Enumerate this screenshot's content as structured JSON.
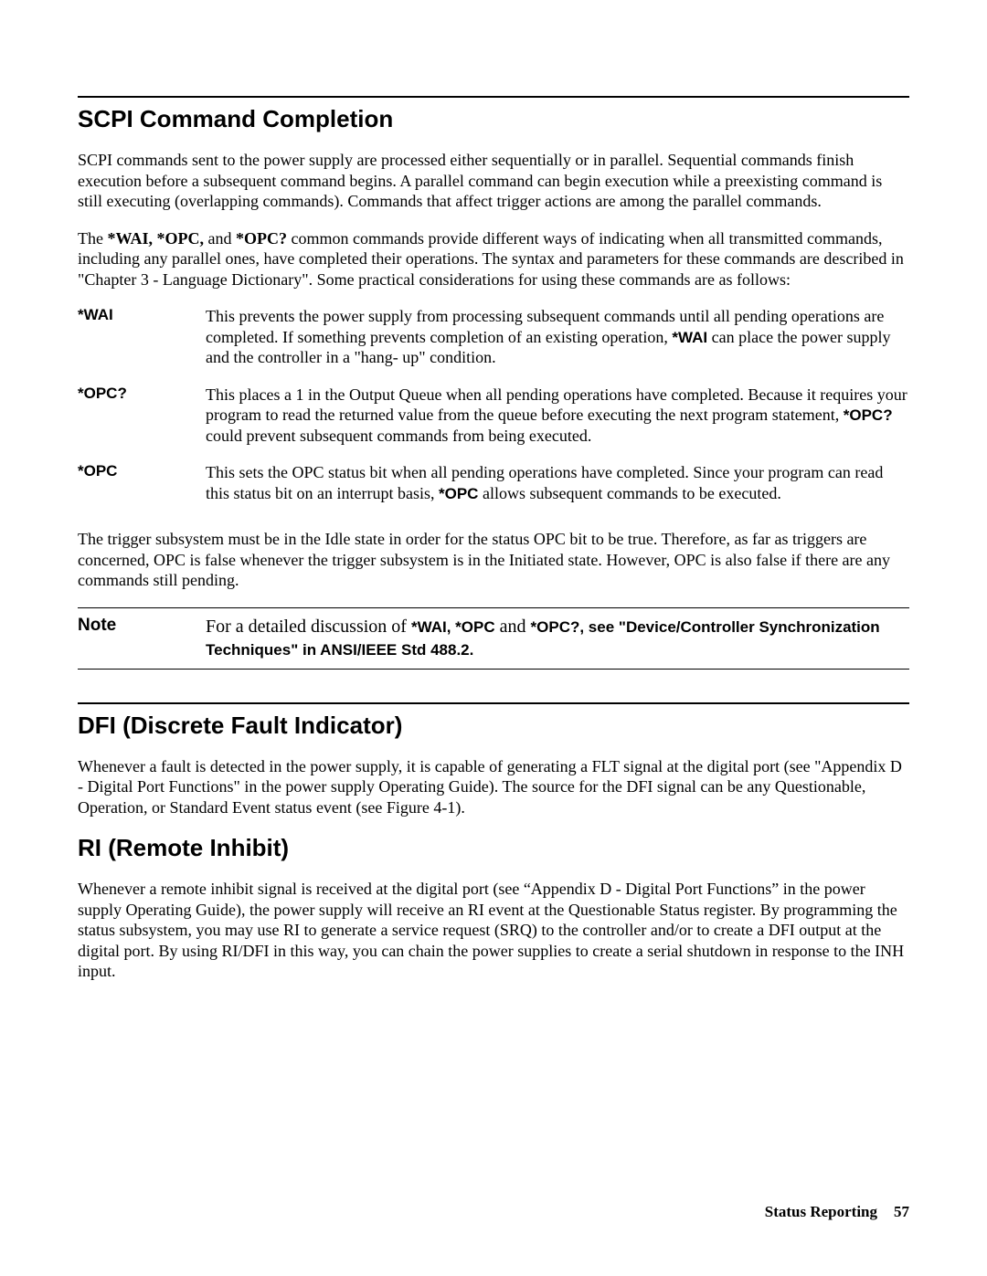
{
  "sections": {
    "scpi": {
      "title": "SCPI Command Completion",
      "para1_a": "SCPI commands sent to the power supply are processed either sequentially or in parallel.  Sequential commands finish execution before a subsequent command begins.  A parallel command can begin execution while a preexisting command is still executing (overlapping commands).  Commands that affect trigger actions are among the parallel commands.",
      "para2_a": "The ",
      "para2_b": "*WAI, *OPC,",
      "para2_c": " and ",
      "para2_d": "*OPC?",
      "para2_e": " common commands provide different ways of indicating when all transmitted commands, including any parallel ones, have completed their operations.  The syntax and parameters for these commands are described in \"Chapter 3 - Language Dictionary\".  Some practical considerations for using these commands are as follows:",
      "cmds": {
        "wai": {
          "label": "*WAI",
          "d1": "This prevents the power supply from processing subsequent commands until all pending operations are completed.  If something prevents completion of an existing operation, ",
          "d2": "*WAI",
          "d3": " can place the power supply and the controller in a \"hang- up\" condition."
        },
        "opcq": {
          "label": "*OPC?",
          "d1": "This places a 1 in the Output Queue when all pending operations have completed.  Because it requires your program to read the returned value from the queue before executing the next program statement, ",
          "d2": "*OPC?",
          "d3": " could prevent subsequent commands from being executed."
        },
        "opc": {
          "label": "*OPC",
          "d1": "This sets the OPC status bit when all pending operations have completed.  Since your program can read this status bit on an interrupt basis, ",
          "d2": "*OPC",
          "d3": " allows subsequent commands to be executed."
        }
      },
      "para3": "The trigger subsystem must be in the Idle state in order for the status OPC bit to be true.  Therefore, as far as triggers are concerned, OPC is false whenever the trigger subsystem is in the Initiated state.  However, OPC is also false if there are any commands still pending.",
      "note": {
        "label": "Note",
        "t1": "For a detailed discussion of ",
        "t2": "*WAI",
        "t3": ", ",
        "t4": "*OPC",
        "t5": " and ",
        "t6": "*OPC?",
        "t7": ", see \"Device/Controller Synchronization Techniques\" in ANSI/IEEE Std 488.2."
      }
    },
    "dfi": {
      "title": "DFI (Discrete Fault Indicator)",
      "para": "Whenever a fault is detected in the power supply, it is capable of generating a FLT signal at the digital port (see \"Appendix D - Digital Port Functions\" in the power supply Operating Guide).  The source for the DFI signal can be any Questionable, Operation, or Standard Event status event (see Figure 4-1)."
    },
    "ri": {
      "title": "RI (Remote Inhibit)",
      "para": "Whenever a remote inhibit signal is received at the digital port (see “Appendix D - Digital Port Functions” in the power supply Operating Guide), the power supply will receive an RI event at the Questionable Status register.  By programming the status subsystem, you may use RI to generate a service request (SRQ) to the controller and/or to create a DFI output at the digital port.  By using RI/DFI in this way, you can chain the power supplies to create a serial shutdown in response to the INH input."
    }
  },
  "footer": {
    "chapter": "Status Reporting",
    "page": "57"
  }
}
